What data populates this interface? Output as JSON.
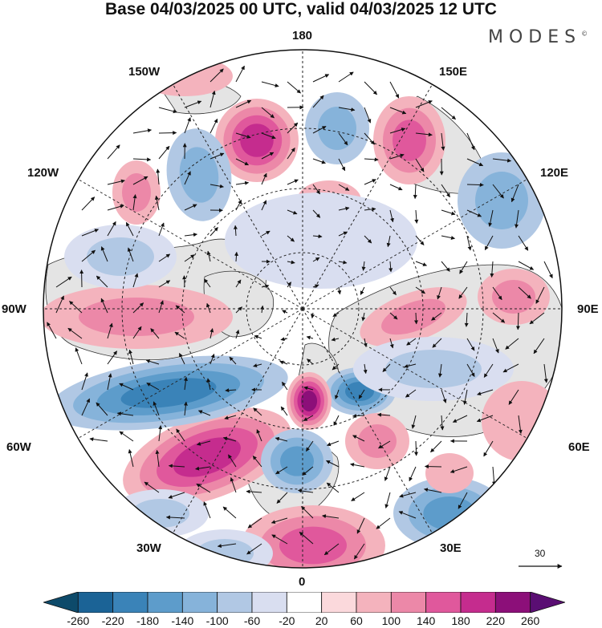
{
  "title": "Base 04/03/2025 00 UTC, valid 04/03/2025 12 UTC",
  "brand": "MODES",
  "brand_mark": "©",
  "longitude_labels": {
    "top": "180",
    "top_left": "150W",
    "top_right": "150E",
    "upper_left": "120W",
    "upper_right": "120E",
    "left": "90W",
    "right": "90E",
    "lower_left": "60W",
    "lower_right": "60E",
    "bottom_left": "30W",
    "bottom_right": "30E",
    "bottom": "0"
  },
  "reference_vector": "30",
  "colorbar": {
    "ticks": [
      "-260",
      "-220",
      "-180",
      "-140",
      "-100",
      "-60",
      "-20",
      "20",
      "60",
      "100",
      "140",
      "180",
      "220",
      "260"
    ],
    "colors": [
      "#0d4a6a",
      "#1b6396",
      "#3a83b8",
      "#5d9ccb",
      "#86b3da",
      "#b1c8e4",
      "#d9def0",
      "#ffffff",
      "#fbd9dc",
      "#f4b3bd",
      "#ec88a8",
      "#e0589c",
      "#c52c8e",
      "#8c0f79",
      "#5a0e73"
    ]
  },
  "anomaly_colors": {
    "land": "#e4e4e4",
    "coast": "#333333"
  }
}
